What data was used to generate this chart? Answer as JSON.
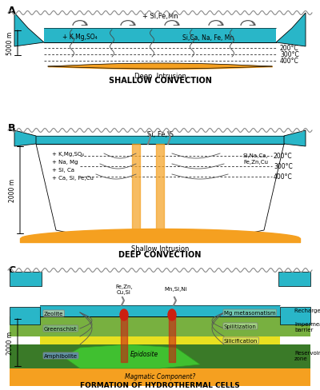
{
  "bg_color": "#ffffff",
  "water_color": "#29b6c8",
  "orange_color": "#f5a020",
  "seafloor_color": "#c8c8a0",
  "green_dark": "#2d8a30",
  "green_bright": "#50c832",
  "yellow_color": "#e8e020",
  "olive_color": "#708020",
  "red_color": "#cc2010",
  "gray_color": "#909090",
  "panel_A": {
    "label": "A",
    "subtitle": "SHALLOW CONVECTION",
    "depth_label": "Deep  Intrusion",
    "depth_scale": "5000 m",
    "temps": [
      "200°C",
      "300°C",
      "400°C"
    ],
    "chem_top": "+ Si,Fe,Mn",
    "chem_left": "+ K,Mg,SO₄",
    "chem_right": "Si,Ca, Na, Fe, Mn"
  },
  "panel_B": {
    "label": "B",
    "subtitle": "DEEP CONVECTION",
    "depth_label": "Shallow Intrusion",
    "depth_scale": "2000 m",
    "temps": [
      "200°C",
      "300°C",
      "400°C"
    ],
    "chem_top": "Si, Fe, S",
    "chem_left": [
      "+ K,Mg,SO₄",
      "+ Na, Mg",
      "+ Si, Ca",
      "+ Ca, Si, Fe,Cu"
    ],
    "chem_right": [
      "Si,Na,Ca,",
      "Fe,Zn,Cu"
    ]
  },
  "panel_C": {
    "label": "C",
    "subtitle": "FORMATION OF HYDROTHERMAL CELLS",
    "depth_scale": "2000 m",
    "chem_top_left": "Fe,Zn,\nCu,Si",
    "chem_top_right": "Mn,Si,Ni",
    "zones_left": [
      "Zeolite",
      "Greenschist",
      "Amphibolite"
    ],
    "zones_right": [
      "Mg metasomatism",
      "Spilitization",
      "Silicification"
    ],
    "labels_right": [
      "Recharge zone",
      "Impermeable\nbarrier",
      "Reservoir\nzone"
    ],
    "bottom_labels": [
      "Epidosite",
      "Magmatic Component?"
    ]
  }
}
